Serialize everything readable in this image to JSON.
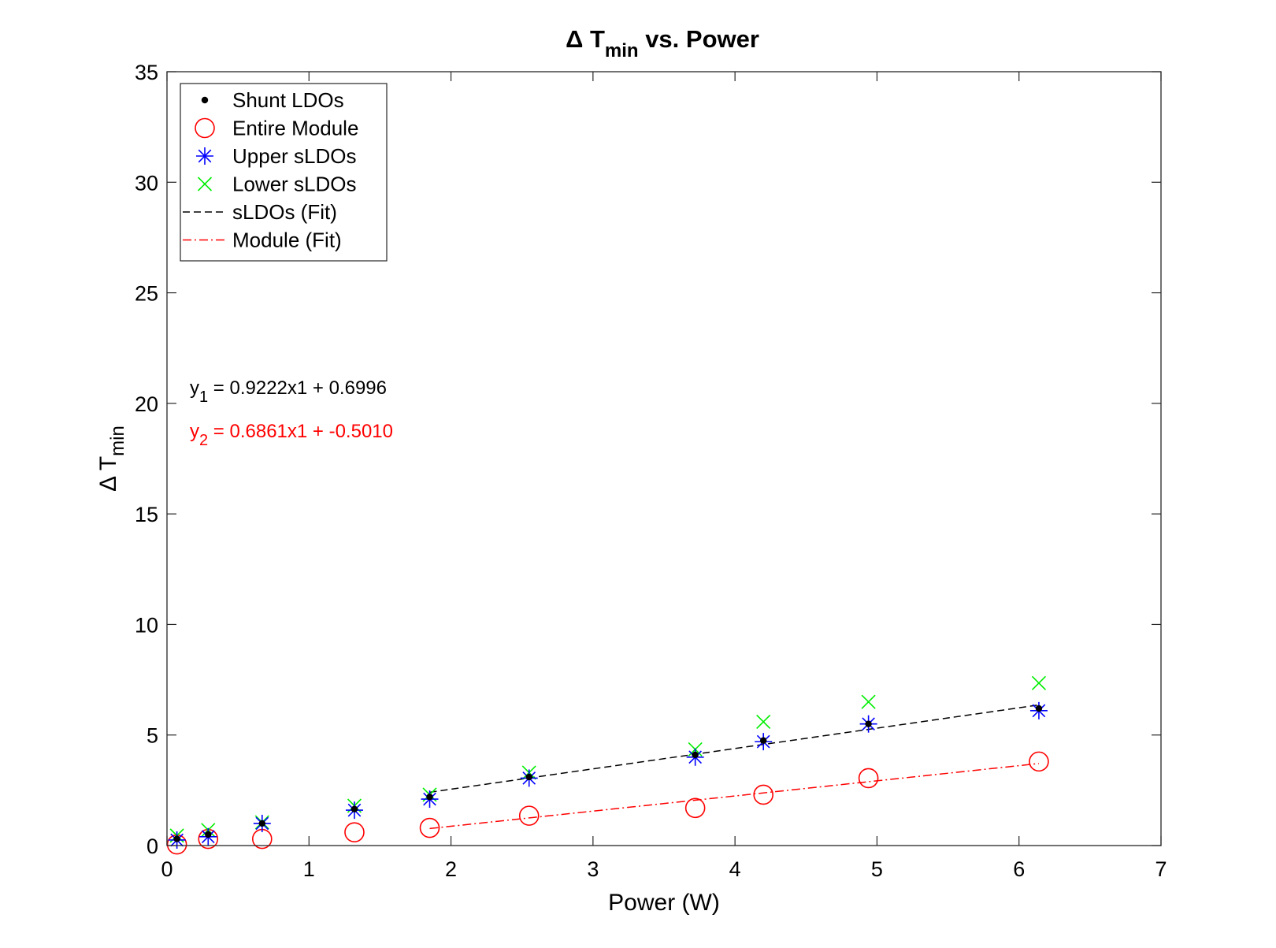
{
  "chart_data": {
    "type": "scatter",
    "title": {
      "prefix": "Δ T",
      "sub": "min",
      "suffix": " vs. Power"
    },
    "xlabel": "Power (W)",
    "ylabel": {
      "main": "Δ T",
      "sub": "min"
    },
    "xlim": [
      0,
      7
    ],
    "ylim": [
      0,
      35
    ],
    "xticks": [
      "0",
      "1",
      "2",
      "3",
      "4",
      "5",
      "6",
      "7"
    ],
    "yticks": [
      "0",
      "5",
      "10",
      "15",
      "20",
      "25",
      "30",
      "35"
    ],
    "grid": false,
    "legend_position": "top-left",
    "x": [
      0.07,
      0.29,
      0.67,
      1.32,
      1.85,
      2.55,
      3.72,
      4.2,
      4.94,
      6.14
    ],
    "series": [
      {
        "name": "Shunt LDOs",
        "marker": "dot",
        "color": "#000000",
        "values": [
          0.3,
          0.5,
          1.0,
          1.65,
          2.2,
          3.1,
          4.1,
          4.75,
          5.5,
          6.2
        ]
      },
      {
        "name": "Entire Module",
        "marker": "circle",
        "color": "#ff0000",
        "values": [
          0.05,
          0.3,
          0.3,
          0.6,
          0.8,
          1.35,
          1.7,
          2.3,
          3.05,
          3.8
        ]
      },
      {
        "name": "Upper sLDOs",
        "marker": "asterisk",
        "color": "#0000ff",
        "values": [
          0.25,
          0.4,
          1.0,
          1.6,
          2.1,
          3.05,
          4.0,
          4.7,
          5.5,
          6.1
        ]
      },
      {
        "name": "Lower sLDOs",
        "marker": "x",
        "color": "#00ee00",
        "values": [
          0.45,
          0.7,
          1.05,
          1.8,
          2.3,
          3.3,
          4.35,
          5.6,
          6.5,
          7.35
        ]
      },
      {
        "name": "sLDOs (Fit)",
        "style": "dashed",
        "color": "#000000",
        "x": [
          1.85,
          6.14
        ],
        "values": [
          2.41,
          6.36
        ]
      },
      {
        "name": "Module (Fit)",
        "style": "dashdot",
        "color": "#ff0000",
        "x": [
          1.85,
          6.14
        ],
        "values": [
          0.77,
          3.71
        ]
      }
    ],
    "annotations": [
      {
        "pre": "y",
        "sub": "1",
        "post": " = 0.9222x1 + 0.6996",
        "color": "#000000"
      },
      {
        "pre": "y",
        "sub": "2",
        "post": " = 0.6861x1 + -0.5010",
        "color": "#ff0000"
      }
    ]
  }
}
